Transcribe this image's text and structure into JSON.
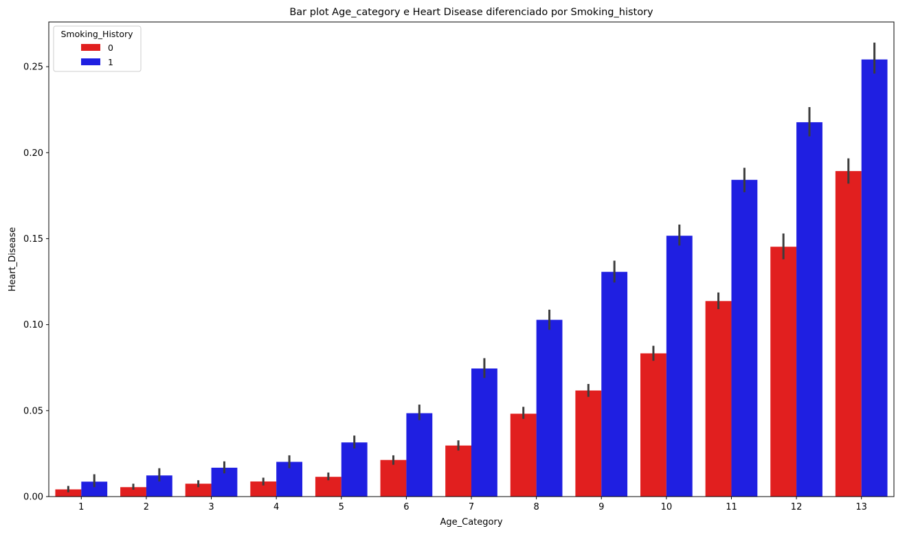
{
  "chart_data": {
    "type": "bar",
    "title": "Bar plot Age_category e Heart Disease diferenciado por Smoking_history",
    "xlabel": "Age_Category",
    "ylabel": "Heart_Disease",
    "categories": [
      "1",
      "2",
      "3",
      "4",
      "5",
      "6",
      "7",
      "8",
      "9",
      "10",
      "11",
      "12",
      "13"
    ],
    "ylim": [
      0,
      0.276
    ],
    "yticks": [
      0.0,
      0.05,
      0.1,
      0.15,
      0.2,
      0.25
    ],
    "ytick_labels": [
      "0.00",
      "0.05",
      "0.10",
      "0.15",
      "0.20",
      "0.25"
    ],
    "grid": false,
    "legend": {
      "title": "Smoking_History",
      "placement": "top-left"
    },
    "series": [
      {
        "name": "0",
        "color": "#e11f1f",
        "values": [
          0.0042,
          0.0055,
          0.0075,
          0.0088,
          0.0115,
          0.0213,
          0.0297,
          0.0482,
          0.0617,
          0.0833,
          0.1137,
          0.1453,
          0.1893
        ],
        "err_low": [
          0.0025,
          0.004,
          0.0055,
          0.0065,
          0.0095,
          0.0185,
          0.0268,
          0.0452,
          0.058,
          0.079,
          0.109,
          0.138,
          0.182
        ],
        "err_high": [
          0.0062,
          0.0075,
          0.0095,
          0.011,
          0.014,
          0.024,
          0.0327,
          0.0522,
          0.0655,
          0.0877,
          0.1187,
          0.153,
          0.1967
        ]
      },
      {
        "name": "1",
        "color": "#1f1fe1",
        "values": [
          0.0087,
          0.0123,
          0.0168,
          0.0202,
          0.0315,
          0.0485,
          0.0745,
          0.1028,
          0.1307,
          0.1517,
          0.1842,
          0.2177,
          0.2542
        ],
        "err_low": [
          0.0055,
          0.0088,
          0.0135,
          0.0165,
          0.028,
          0.0445,
          0.069,
          0.097,
          0.1245,
          0.146,
          0.177,
          0.2095,
          0.246
        ],
        "err_high": [
          0.013,
          0.0165,
          0.0205,
          0.024,
          0.0355,
          0.0535,
          0.0805,
          0.1087,
          0.1372,
          0.1582,
          0.1912,
          0.2265,
          0.264
        ]
      }
    ]
  }
}
